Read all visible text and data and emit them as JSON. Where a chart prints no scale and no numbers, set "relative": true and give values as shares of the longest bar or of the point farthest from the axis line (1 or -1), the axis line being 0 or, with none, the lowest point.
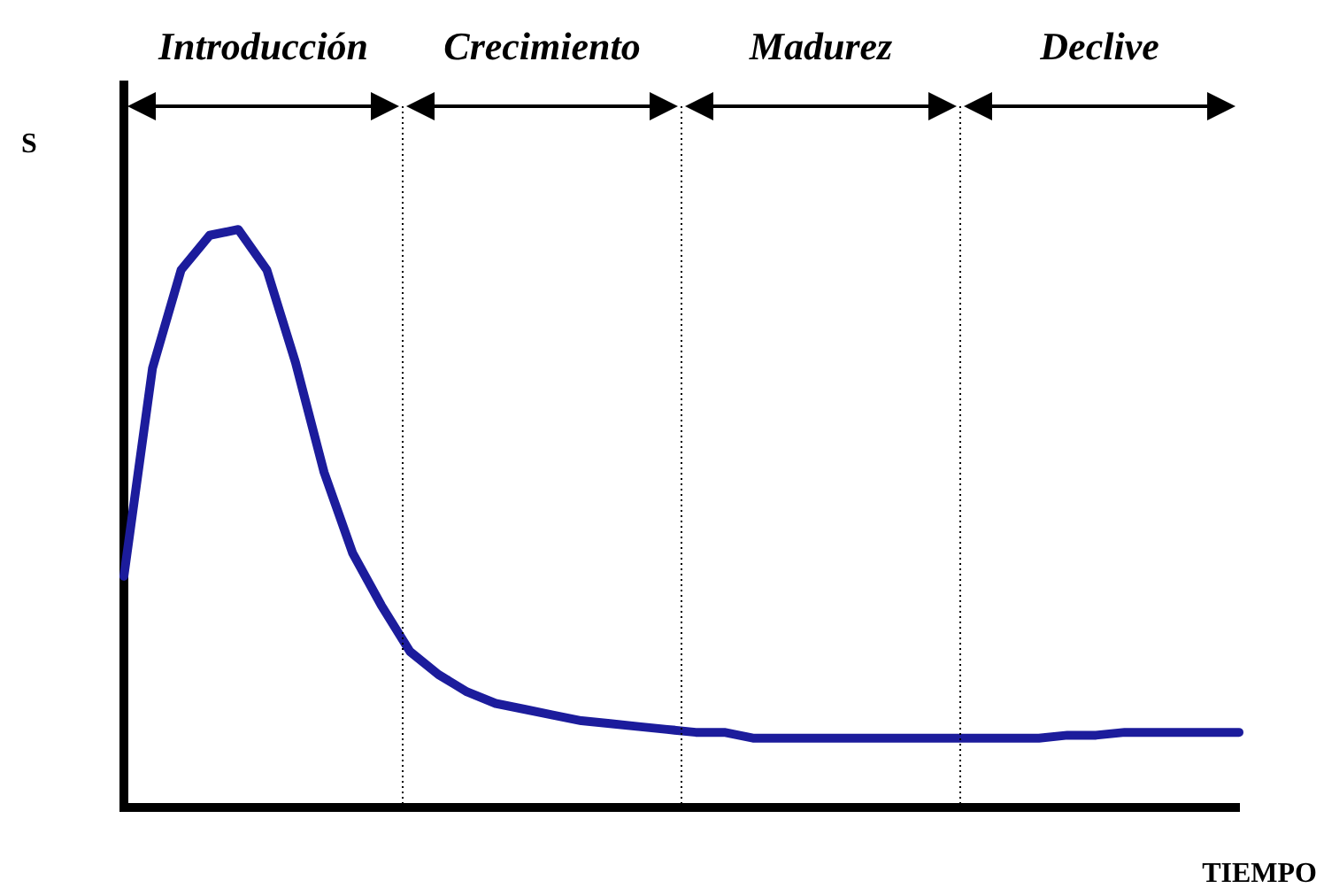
{
  "chart_data": {
    "type": "line",
    "relative": true,
    "xlabel": "TIEMPO",
    "ylabel": "S",
    "tick_labels": false,
    "grid": false,
    "legend": false,
    "annotations": [
      "Introducción",
      "Crecimiento",
      "Madurez",
      "Declive"
    ],
    "categories": [
      null,
      null,
      null,
      null,
      null,
      null,
      null,
      null,
      null,
      null,
      null,
      null,
      null,
      null,
      null,
      null,
      null,
      null,
      null,
      null,
      null,
      null,
      null,
      null,
      null,
      null,
      null,
      null,
      null,
      null,
      null,
      null,
      null,
      null,
      null,
      null,
      null,
      null,
      null,
      null
    ],
    "series": [
      {
        "color": "#1c1c9c",
        "values": [
          0.4,
          0.76,
          0.93,
          0.99,
          1.0,
          0.93,
          0.77,
          0.58,
          0.44,
          0.35,
          0.27,
          0.23,
          0.2,
          0.18,
          0.17,
          0.16,
          0.15,
          0.145,
          0.14,
          0.135,
          0.13,
          0.13,
          0.12,
          0.12,
          0.12,
          0.12,
          0.12,
          0.12,
          0.12,
          0.12,
          0.12,
          0.12,
          0.12,
          0.125,
          0.125,
          0.13,
          0.13,
          0.13,
          0.13,
          0.13
        ]
      }
    ]
  }
}
